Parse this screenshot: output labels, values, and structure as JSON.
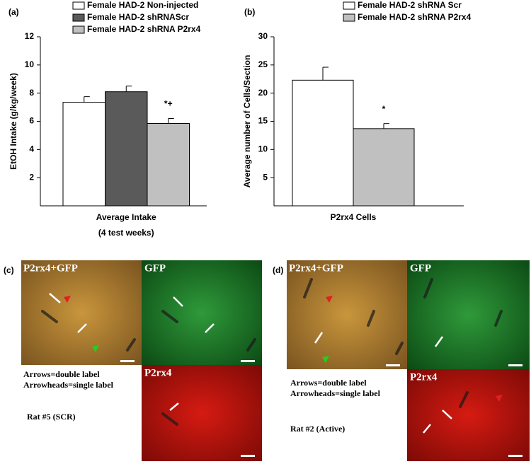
{
  "chart_data": [
    {
      "type": "bar",
      "panel_label": "(a)",
      "y_label": "EtOH Intake (g/kg/week)",
      "categories": [
        "Average  Intake"
      ],
      "x_label": "(4 test weeks)",
      "ylim": [
        0,
        12
      ],
      "yticks": [
        2,
        4,
        6,
        8,
        10,
        12
      ],
      "series": [
        {
          "name": "Female HAD-2 Non-injected",
          "color": "#ffffff",
          "values": [
            7.35
          ],
          "errors": [
            0.4
          ]
        },
        {
          "name": "Female HAD-2 shRNAScr",
          "color": "#5a5a5a",
          "values": [
            8.1
          ],
          "errors": [
            0.4
          ]
        },
        {
          "name": "Female HAD-2  shRNA P2rx4",
          "color": "#c0c0c0",
          "values": [
            5.85
          ],
          "errors": [
            0.35
          ]
        }
      ],
      "annotation": "*+"
    },
    {
      "type": "bar",
      "panel_label": "(b)",
      "y_label": "Average number of Cells/Section",
      "categories": [
        "P2rx4 Cells"
      ],
      "ylim": [
        0,
        30
      ],
      "yticks": [
        5,
        10,
        15,
        20,
        25,
        30
      ],
      "series": [
        {
          "name": "Female HAD-2 shRNA Scr",
          "color": "#ffffff",
          "values": [
            22.3
          ],
          "errors": [
            2.3
          ]
        },
        {
          "name": "Female HAD-2 shRNA P2rx4",
          "color": "#c0c0c0",
          "values": [
            13.7
          ],
          "errors": [
            0.9
          ]
        }
      ],
      "annotation": "*"
    }
  ],
  "panels": [
    {
      "label": "(c)",
      "merged": "P2rx4+GFP",
      "green": "GFP",
      "red": "P2rx4",
      "notes": [
        "Arrows=double label",
        "Arrowheads=single label"
      ],
      "rat": "Rat #5 (SCR)"
    },
    {
      "label": "(d)",
      "merged": "P2rx4+GFP",
      "green": "GFP",
      "red": "P2rx4",
      "notes": [
        "Arrows=double label",
        "Arrowheads=single label"
      ],
      "rat": "Rat #2 (Active)"
    }
  ]
}
